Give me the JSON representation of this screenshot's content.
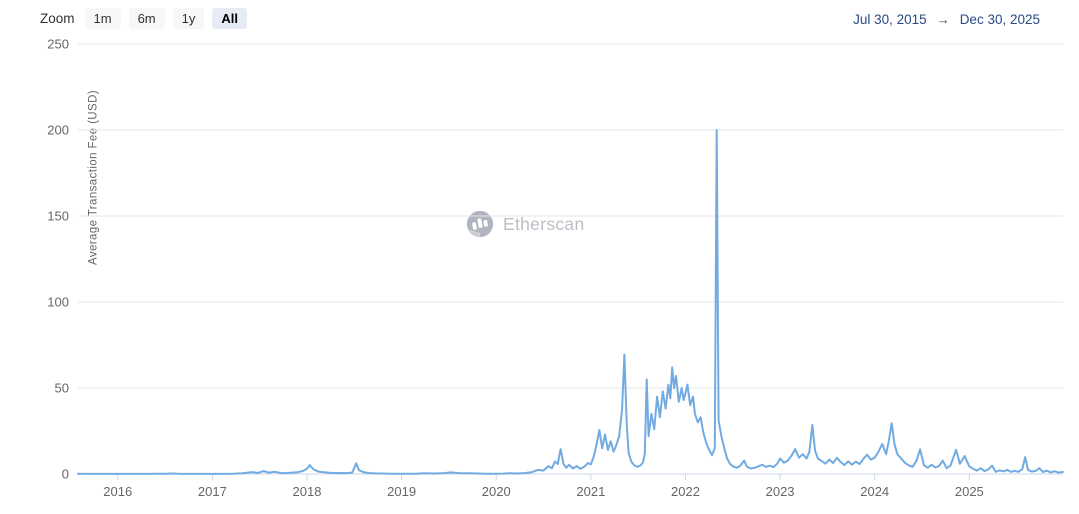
{
  "header": {
    "zoom_label": "Zoom",
    "zoom_buttons": [
      {
        "label": "1m",
        "selected": false
      },
      {
        "label": "6m",
        "selected": false
      },
      {
        "label": "1y",
        "selected": false
      },
      {
        "label": "All",
        "selected": true
      }
    ],
    "date_range": {
      "start": "Jul 30, 2015",
      "separator": "→",
      "end": "Dec 30, 2025"
    }
  },
  "watermark": {
    "text": "Etherscan"
  },
  "colors": {
    "line": "#72aae2",
    "grid": "#e6e6e6",
    "axis_line": "#ccd6eb",
    "tick_text": "#666666",
    "date_text": "#274b82",
    "button_bg": "#f7f7f7",
    "button_selected_bg": "#e6ebf5",
    "watermark_gray": "#b0b4bc"
  },
  "chart_data": {
    "type": "line",
    "title": "",
    "xlabel": "",
    "ylabel": "Average Transaction Fee (USD)",
    "x_range": [
      2015.58,
      2025.99
    ],
    "ylim": [
      0,
      250
    ],
    "y_ticks": [
      0,
      50,
      100,
      150,
      200,
      250
    ],
    "x_ticks": [
      2016,
      2017,
      2018,
      2019,
      2020,
      2021,
      2022,
      2023,
      2024,
      2025
    ],
    "grid": "horizontal",
    "legend": "none",
    "series": [
      {
        "name": "Average Transaction Fee (USD)",
        "color": "#72aae2",
        "points": [
          [
            2015.58,
            0.1
          ],
          [
            2015.7,
            0.06
          ],
          [
            2015.82,
            0.05
          ],
          [
            2015.94,
            0.06
          ],
          [
            2016.06,
            0.05
          ],
          [
            2016.18,
            0.05
          ],
          [
            2016.3,
            0.08
          ],
          [
            2016.42,
            0.2
          ],
          [
            2016.5,
            0.12
          ],
          [
            2016.56,
            0.28
          ],
          [
            2016.64,
            0.1
          ],
          [
            2016.76,
            0.06
          ],
          [
            2016.88,
            0.05
          ],
          [
            2017.0,
            0.05
          ],
          [
            2017.12,
            0.08
          ],
          [
            2017.22,
            0.15
          ],
          [
            2017.32,
            0.4
          ],
          [
            2017.42,
            1.1
          ],
          [
            2017.48,
            0.6
          ],
          [
            2017.54,
            1.7
          ],
          [
            2017.6,
            0.8
          ],
          [
            2017.66,
            1.3
          ],
          [
            2017.72,
            0.6
          ],
          [
            2017.78,
            0.5
          ],
          [
            2017.84,
            0.8
          ],
          [
            2017.9,
            1.0
          ],
          [
            2017.96,
            1.8
          ],
          [
            2018.0,
            3.0
          ],
          [
            2018.03,
            5.2
          ],
          [
            2018.07,
            2.6
          ],
          [
            2018.12,
            1.4
          ],
          [
            2018.18,
            1.0
          ],
          [
            2018.24,
            0.7
          ],
          [
            2018.3,
            0.5
          ],
          [
            2018.36,
            0.6
          ],
          [
            2018.42,
            0.5
          ],
          [
            2018.48,
            0.9
          ],
          [
            2018.52,
            6.2
          ],
          [
            2018.55,
            2.2
          ],
          [
            2018.6,
            1.0
          ],
          [
            2018.66,
            0.5
          ],
          [
            2018.72,
            0.35
          ],
          [
            2018.78,
            0.3
          ],
          [
            2018.84,
            0.22
          ],
          [
            2018.9,
            0.18
          ],
          [
            2018.96,
            0.15
          ],
          [
            2019.05,
            0.12
          ],
          [
            2019.15,
            0.18
          ],
          [
            2019.25,
            0.45
          ],
          [
            2019.35,
            0.3
          ],
          [
            2019.45,
            0.55
          ],
          [
            2019.52,
            0.95
          ],
          [
            2019.6,
            0.5
          ],
          [
            2019.7,
            0.45
          ],
          [
            2019.8,
            0.3
          ],
          [
            2019.9,
            0.2
          ],
          [
            2020.0,
            0.15
          ],
          [
            2020.08,
            0.25
          ],
          [
            2020.14,
            0.45
          ],
          [
            2020.22,
            0.3
          ],
          [
            2020.3,
            0.55
          ],
          [
            2020.38,
            1.1
          ],
          [
            2020.44,
            2.4
          ],
          [
            2020.5,
            2.0
          ],
          [
            2020.55,
            4.6
          ],
          [
            2020.59,
            3.4
          ],
          [
            2020.62,
            7.2
          ],
          [
            2020.65,
            5.8
          ],
          [
            2020.68,
            14.5
          ],
          [
            2020.71,
            6.0
          ],
          [
            2020.74,
            3.6
          ],
          [
            2020.77,
            5.4
          ],
          [
            2020.81,
            3.2
          ],
          [
            2020.85,
            4.6
          ],
          [
            2020.89,
            3.0
          ],
          [
            2020.93,
            4.2
          ],
          [
            2020.97,
            6.4
          ],
          [
            2021.0,
            5.6
          ],
          [
            2021.03,
            10
          ],
          [
            2021.06,
            17
          ],
          [
            2021.09,
            25.5
          ],
          [
            2021.12,
            15
          ],
          [
            2021.15,
            23
          ],
          [
            2021.18,
            14
          ],
          [
            2021.21,
            19
          ],
          [
            2021.24,
            13
          ],
          [
            2021.27,
            17
          ],
          [
            2021.3,
            22
          ],
          [
            2021.33,
            38
          ],
          [
            2021.355,
            69.5
          ],
          [
            2021.38,
            28
          ],
          [
            2021.4,
            12
          ],
          [
            2021.43,
            7
          ],
          [
            2021.46,
            5
          ],
          [
            2021.49,
            4.2
          ],
          [
            2021.52,
            4.8
          ],
          [
            2021.55,
            6.5
          ],
          [
            2021.57,
            12
          ],
          [
            2021.59,
            55
          ],
          [
            2021.61,
            22
          ],
          [
            2021.64,
            35
          ],
          [
            2021.67,
            26
          ],
          [
            2021.7,
            45
          ],
          [
            2021.73,
            33
          ],
          [
            2021.76,
            48
          ],
          [
            2021.79,
            38
          ],
          [
            2021.82,
            52
          ],
          [
            2021.84,
            44
          ],
          [
            2021.86,
            62
          ],
          [
            2021.88,
            50
          ],
          [
            2021.9,
            57
          ],
          [
            2021.93,
            42
          ],
          [
            2021.96,
            50
          ],
          [
            2021.98,
            43
          ],
          [
            2022.0,
            47
          ],
          [
            2022.02,
            52
          ],
          [
            2022.05,
            40
          ],
          [
            2022.08,
            45
          ],
          [
            2022.1,
            35
          ],
          [
            2022.13,
            30
          ],
          [
            2022.16,
            33
          ],
          [
            2022.19,
            24
          ],
          [
            2022.22,
            18
          ],
          [
            2022.25,
            14
          ],
          [
            2022.28,
            11
          ],
          [
            2022.31,
            15
          ],
          [
            2022.33,
            200
          ],
          [
            2022.35,
            31
          ],
          [
            2022.38,
            22
          ],
          [
            2022.41,
            15
          ],
          [
            2022.44,
            9
          ],
          [
            2022.47,
            6
          ],
          [
            2022.5,
            4.5
          ],
          [
            2022.54,
            3.6
          ],
          [
            2022.58,
            4.8
          ],
          [
            2022.62,
            7.8
          ],
          [
            2022.65,
            4.2
          ],
          [
            2022.69,
            3.2
          ],
          [
            2022.73,
            3.6
          ],
          [
            2022.77,
            4.4
          ],
          [
            2022.81,
            5.4
          ],
          [
            2022.85,
            4.2
          ],
          [
            2022.89,
            4.8
          ],
          [
            2022.93,
            4.0
          ],
          [
            2022.97,
            6.0
          ],
          [
            2023.0,
            9
          ],
          [
            2023.04,
            6.5
          ],
          [
            2023.08,
            7.8
          ],
          [
            2023.12,
            10.5
          ],
          [
            2023.16,
            14.5
          ],
          [
            2023.2,
            9.5
          ],
          [
            2023.24,
            11.5
          ],
          [
            2023.28,
            9
          ],
          [
            2023.31,
            13
          ],
          [
            2023.34,
            28.5
          ],
          [
            2023.37,
            13.5
          ],
          [
            2023.4,
            9
          ],
          [
            2023.44,
            7.5
          ],
          [
            2023.48,
            6
          ],
          [
            2023.52,
            8.4
          ],
          [
            2023.56,
            6.4
          ],
          [
            2023.6,
            9.4
          ],
          [
            2023.64,
            7
          ],
          [
            2023.68,
            5.2
          ],
          [
            2023.72,
            7.4
          ],
          [
            2023.76,
            5.4
          ],
          [
            2023.8,
            7.2
          ],
          [
            2023.84,
            5.8
          ],
          [
            2023.88,
            8.8
          ],
          [
            2023.92,
            11.2
          ],
          [
            2023.96,
            8.4
          ],
          [
            2024.0,
            9.5
          ],
          [
            2024.04,
            13
          ],
          [
            2024.08,
            17.5
          ],
          [
            2024.12,
            11.5
          ],
          [
            2024.15,
            19.5
          ],
          [
            2024.18,
            29.5
          ],
          [
            2024.21,
            17
          ],
          [
            2024.24,
            11.5
          ],
          [
            2024.28,
            9
          ],
          [
            2024.32,
            6.5
          ],
          [
            2024.36,
            5
          ],
          [
            2024.4,
            4.2
          ],
          [
            2024.44,
            7.5
          ],
          [
            2024.48,
            14.3
          ],
          [
            2024.52,
            5.2
          ],
          [
            2024.56,
            3.6
          ],
          [
            2024.6,
            5.4
          ],
          [
            2024.64,
            3.8
          ],
          [
            2024.68,
            4.6
          ],
          [
            2024.72,
            7.8
          ],
          [
            2024.76,
            3.4
          ],
          [
            2024.8,
            4.8
          ],
          [
            2024.86,
            14
          ],
          [
            2024.9,
            6
          ],
          [
            2024.95,
            10.4
          ],
          [
            2025.0,
            4.4
          ],
          [
            2025.04,
            3
          ],
          [
            2025.08,
            2
          ],
          [
            2025.12,
            3.4
          ],
          [
            2025.16,
            1.6
          ],
          [
            2025.2,
            2.6
          ],
          [
            2025.24,
            4.8
          ],
          [
            2025.28,
            1.3
          ],
          [
            2025.32,
            2.1
          ],
          [
            2025.36,
            1.5
          ],
          [
            2025.4,
            2.4
          ],
          [
            2025.44,
            1.2
          ],
          [
            2025.48,
            1.8
          ],
          [
            2025.52,
            1.3
          ],
          [
            2025.56,
            2.8
          ],
          [
            2025.59,
            9.8
          ],
          [
            2025.62,
            2.4
          ],
          [
            2025.66,
            1.4
          ],
          [
            2025.7,
            1.8
          ],
          [
            2025.74,
            3.4
          ],
          [
            2025.78,
            1.1
          ],
          [
            2025.82,
            2
          ],
          [
            2025.86,
            0.9
          ],
          [
            2025.9,
            1.6
          ],
          [
            2025.94,
            0.8
          ],
          [
            2025.99,
            1.2
          ]
        ]
      }
    ]
  }
}
